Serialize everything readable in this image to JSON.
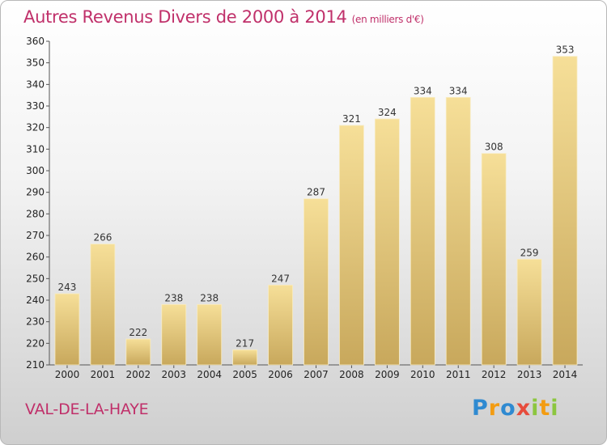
{
  "header": {
    "title": "Autres Revenus Divers de 2000 à 2014",
    "unit": "(en milliers d'€)"
  },
  "footer": {
    "place": "VAL-DE-LA-HAYE",
    "logo": "Proxiti"
  },
  "colors": {
    "title": "#c0306a",
    "bar_light": "#f6df98",
    "bar_dark": "#c8a85c"
  },
  "chart_data": {
    "type": "bar",
    "categories": [
      "2000",
      "2001",
      "2002",
      "2003",
      "2004",
      "2005",
      "2006",
      "2007",
      "2008",
      "2009",
      "2010",
      "2011",
      "2012",
      "2013",
      "2014"
    ],
    "values": [
      243,
      266,
      222,
      238,
      238,
      217,
      247,
      287,
      321,
      324,
      334,
      334,
      308,
      259,
      353
    ],
    "title": "Autres Revenus Divers de 2000 à 2014",
    "ylim": [
      210,
      360
    ],
    "yticks": [
      210,
      220,
      230,
      240,
      250,
      260,
      270,
      280,
      290,
      300,
      310,
      320,
      330,
      340,
      350,
      360
    ],
    "grid": false
  }
}
